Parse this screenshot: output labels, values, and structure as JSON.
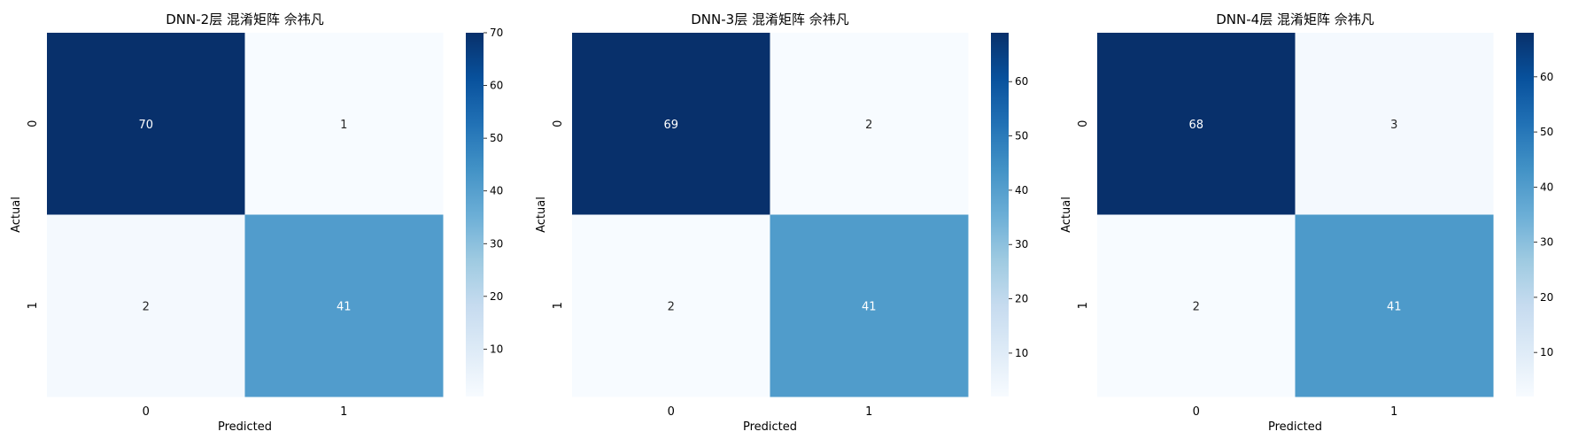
{
  "chart_data": [
    {
      "type": "heatmap",
      "title": "DNN-2层 混淆矩阵 佘祎凡",
      "xlabel": "Predicted",
      "ylabel": "Actual",
      "x_categories": [
        "0",
        "1"
      ],
      "y_categories": [
        "0",
        "1"
      ],
      "matrix": [
        [
          70,
          1
        ],
        [
          2,
          41
        ]
      ],
      "colormap": "Blues",
      "colorbar": {
        "min": 1,
        "max": 70,
        "ticks": [
          10,
          20,
          30,
          40,
          50,
          60,
          70
        ]
      }
    },
    {
      "type": "heatmap",
      "title": "DNN-3层 混淆矩阵 佘祎凡",
      "xlabel": "Predicted",
      "ylabel": "Actual",
      "x_categories": [
        "0",
        "1"
      ],
      "y_categories": [
        "0",
        "1"
      ],
      "matrix": [
        [
          69,
          2
        ],
        [
          2,
          41
        ]
      ],
      "colormap": "Blues",
      "colorbar": {
        "min": 2,
        "max": 69,
        "ticks": [
          10,
          20,
          30,
          40,
          50,
          60
        ]
      }
    },
    {
      "type": "heatmap",
      "title": "DNN-4层 混淆矩阵 佘祎凡",
      "xlabel": "Predicted",
      "ylabel": "Actual",
      "x_categories": [
        "0",
        "1"
      ],
      "y_categories": [
        "0",
        "1"
      ],
      "matrix": [
        [
          68,
          3
        ],
        [
          2,
          41
        ]
      ],
      "colormap": "Blues",
      "colorbar": {
        "min": 2,
        "max": 68,
        "ticks": [
          10,
          20,
          30,
          40,
          50,
          60
        ]
      }
    }
  ]
}
